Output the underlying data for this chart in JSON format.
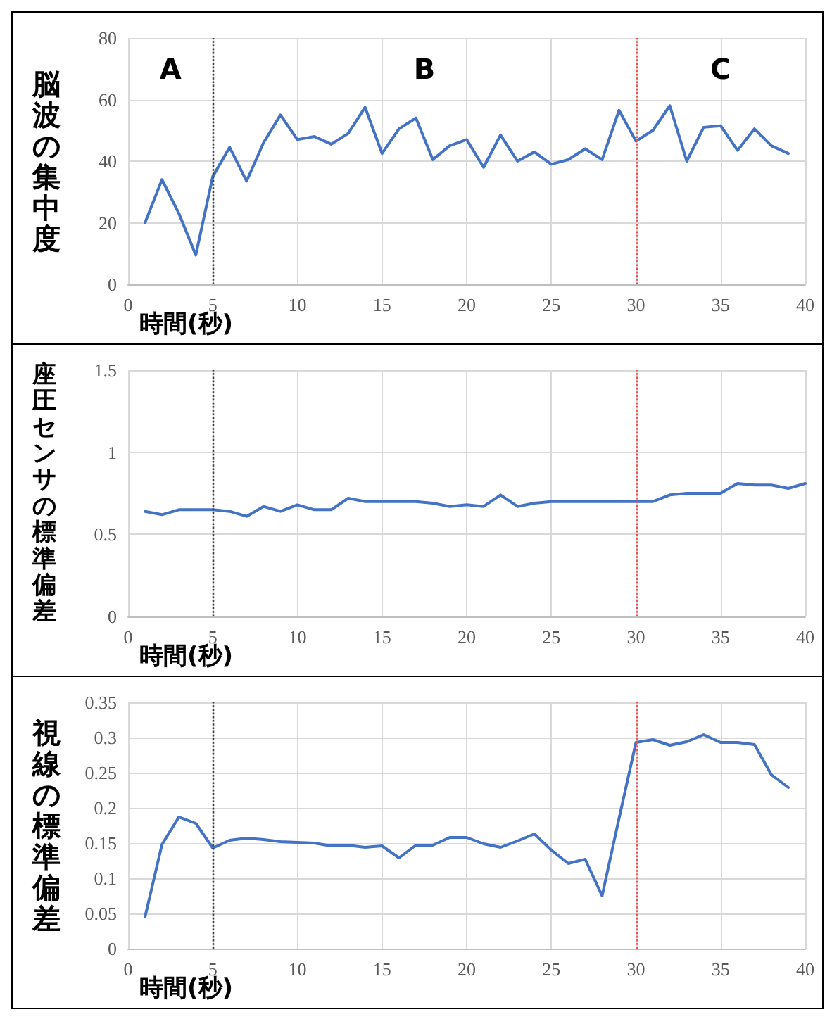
{
  "chart_data": [
    {
      "type": "line",
      "ylabel": "脳波の集中度",
      "xlabel": "時間(秒)",
      "x": [
        1,
        2,
        3,
        4,
        5,
        6,
        7,
        8,
        9,
        10,
        11,
        12,
        13,
        14,
        15,
        16,
        17,
        18,
        19,
        20,
        21,
        22,
        23,
        24,
        25,
        26,
        27,
        28,
        29,
        30,
        31,
        32,
        33,
        34,
        35,
        36,
        37,
        38,
        39
      ],
      "series": [
        {
          "color": "#4472c4",
          "values": [
            20,
            34,
            23,
            9.5,
            35,
            44.5,
            33.5,
            46,
            55,
            47,
            48,
            45.5,
            49,
            57.5,
            42.5,
            50.5,
            54,
            40.5,
            45,
            47,
            38,
            48.5,
            40,
            43,
            39,
            40.5,
            44,
            40.5,
            56.5,
            46.5,
            50,
            58,
            40,
            51,
            51.5,
            43.5,
            50.5,
            45,
            42.5
          ]
        }
      ],
      "xlim": [
        0,
        40
      ],
      "xticks": [
        0,
        5,
        10,
        15,
        20,
        25,
        30,
        35,
        40
      ],
      "ylim": [
        0,
        80
      ],
      "yticks": [
        0,
        20,
        40,
        60,
        80
      ],
      "grid": true,
      "marker": "none",
      "line_style": "solid",
      "ref_lines": [
        {
          "axis": "x",
          "value": 5,
          "color": "#404040",
          "line_style": "dotted"
        },
        {
          "axis": "x",
          "value": 30,
          "color": "#ff4d4d",
          "line_style": "dotted"
        }
      ],
      "annotations": [
        "A",
        "B",
        "C"
      ]
    },
    {
      "type": "line",
      "ylabel": "座圧センサの標準偏差",
      "xlabel": "時間(秒)",
      "x": [
        1,
        2,
        3,
        4,
        5,
        6,
        7,
        8,
        9,
        10,
        11,
        12,
        13,
        14,
        15,
        16,
        17,
        18,
        19,
        20,
        21,
        22,
        23,
        24,
        25,
        26,
        27,
        28,
        29,
        30,
        31,
        32,
        33,
        34,
        35,
        36,
        37,
        38,
        39,
        40
      ],
      "series": [
        {
          "color": "#4472c4",
          "values": [
            0.64,
            0.62,
            0.65,
            0.65,
            0.65,
            0.64,
            0.61,
            0.67,
            0.64,
            0.68,
            0.65,
            0.65,
            0.72,
            0.7,
            0.7,
            0.7,
            0.7,
            0.69,
            0.67,
            0.68,
            0.67,
            0.74,
            0.67,
            0.69,
            0.7,
            0.7,
            0.7,
            0.7,
            0.7,
            0.7,
            0.7,
            0.74,
            0.75,
            0.75,
            0.75,
            0.81,
            0.8,
            0.8,
            0.78,
            0.81
          ]
        }
      ],
      "xlim": [
        0,
        40
      ],
      "xticks": [
        0,
        5,
        10,
        15,
        20,
        25,
        30,
        35,
        40
      ],
      "ylim": [
        0,
        1.5
      ],
      "yticks": [
        0,
        0.5,
        1,
        1.5
      ],
      "grid": true,
      "marker": "none",
      "line_style": "solid",
      "ref_lines": [
        {
          "axis": "x",
          "value": 5,
          "color": "#404040",
          "line_style": "dotted"
        },
        {
          "axis": "x",
          "value": 30,
          "color": "#ff4d4d",
          "line_style": "dotted"
        }
      ]
    },
    {
      "type": "line",
      "ylabel": "視線の標準偏差",
      "xlabel": "時間(秒)",
      "x": [
        1,
        2,
        3,
        4,
        5,
        6,
        7,
        8,
        9,
        10,
        11,
        12,
        13,
        14,
        15,
        16,
        17,
        18,
        19,
        20,
        21,
        22,
        23,
        24,
        25,
        26,
        27,
        28,
        29,
        30,
        31,
        32,
        33,
        34,
        35,
        36,
        37,
        38,
        39
      ],
      "series": [
        {
          "color": "#4472c4",
          "values": [
            0.045,
            0.148,
            0.187,
            0.178,
            0.143,
            0.154,
            0.157,
            0.155,
            0.152,
            0.151,
            0.15,
            0.146,
            0.147,
            0.144,
            0.146,
            0.129,
            0.147,
            0.147,
            0.158,
            0.158,
            0.149,
            0.144,
            0.153,
            0.163,
            0.14,
            0.121,
            0.127,
            0.075,
            0.185,
            0.293,
            0.297,
            0.289,
            0.294,
            0.304,
            0.293,
            0.293,
            0.29,
            0.247,
            0.229
          ]
        }
      ],
      "xlim": [
        0,
        40
      ],
      "xticks": [
        0,
        5,
        10,
        15,
        20,
        25,
        30,
        35,
        40
      ],
      "ylim": [
        0,
        0.35
      ],
      "yticks": [
        0,
        0.05,
        0.1,
        0.15,
        0.2,
        0.25,
        0.3,
        0.35
      ],
      "grid": true,
      "marker": "none",
      "line_style": "solid",
      "ref_lines": [
        {
          "axis": "x",
          "value": 5,
          "color": "#404040",
          "line_style": "dotted"
        },
        {
          "axis": "x",
          "value": 30,
          "color": "#ff4d4d",
          "line_style": "dotted"
        }
      ]
    }
  ]
}
